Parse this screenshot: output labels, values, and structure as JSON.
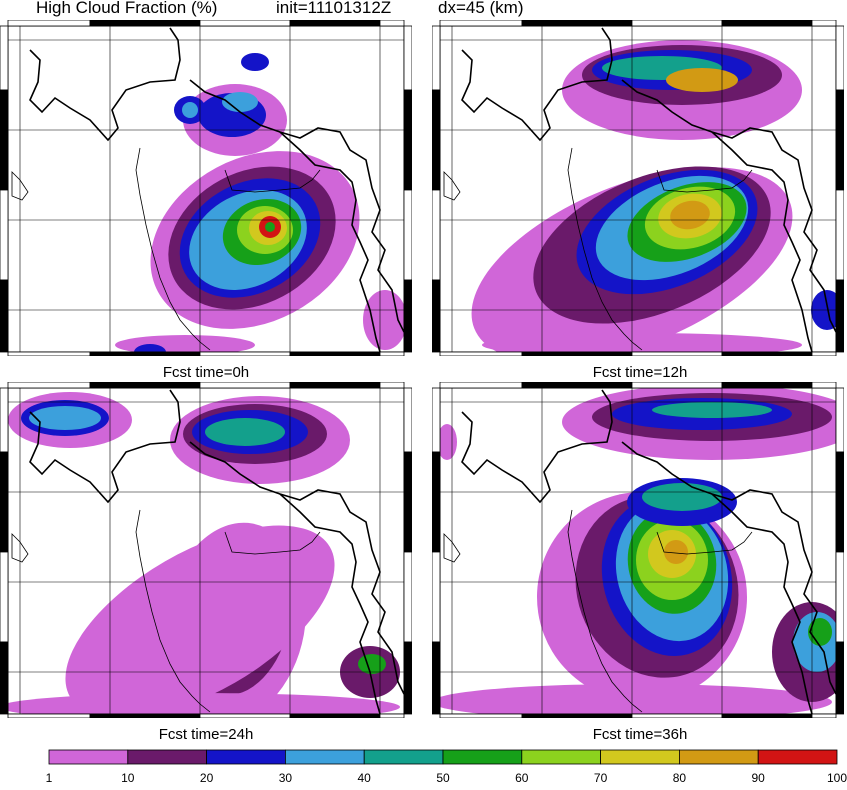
{
  "header": {
    "title": "High Cloud Fraction (%)",
    "init": "init=11101312Z",
    "dx": "dx=45 (km)"
  },
  "panels": [
    {
      "caption": "Fcst time=0h"
    },
    {
      "caption": "Fcst time=12h"
    },
    {
      "caption": "Fcst time=24h"
    },
    {
      "caption": "Fcst time=36h"
    }
  ],
  "colorbar": {
    "levels": [
      "1",
      "10",
      "20",
      "30",
      "40",
      "50",
      "60",
      "70",
      "80",
      "90",
      "100"
    ],
    "colors": [
      "#d066d8",
      "#6a1a6a",
      "#1414c8",
      "#3ca0dc",
      "#13a08c",
      "#16a019",
      "#8cd21e",
      "#d2c81e",
      "#d29a14",
      "#d21414"
    ]
  }
}
